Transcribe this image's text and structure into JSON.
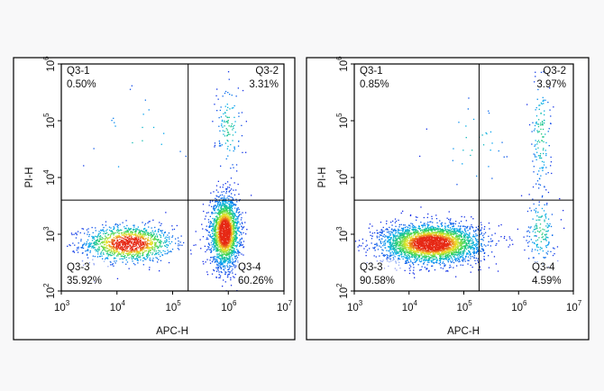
{
  "chart_data": [
    {
      "type": "scatter",
      "subtype": "flow-cytometry-density-dot-plot",
      "xlabel": "APC-H",
      "ylabel": "PI-H",
      "x_scale": "log",
      "y_scale": "log",
      "xlim": [
        1000,
        10000000
      ],
      "ylim": [
        100,
        1000000
      ],
      "x_ticks": [
        {
          "base": "10",
          "exp": "3"
        },
        {
          "base": "10",
          "exp": "4"
        },
        {
          "base": "10",
          "exp": "5"
        },
        {
          "base": "10",
          "exp": "6"
        },
        {
          "base": "10",
          "exp": "7"
        }
      ],
      "y_ticks": [
        {
          "base": "10",
          "exp": "2"
        },
        {
          "base": "10",
          "exp": "3"
        },
        {
          "base": "10",
          "exp": "4"
        },
        {
          "base": "10",
          "exp": "5"
        },
        {
          "base": "10",
          "exp": "6"
        }
      ],
      "gates": {
        "x_threshold": 190000,
        "y_threshold": 4000
      },
      "quadrants": [
        {
          "name": "Q3-1",
          "percent": "0.50%"
        },
        {
          "name": "Q3-2",
          "percent": "3.31%"
        },
        {
          "name": "Q3-3",
          "percent": "35.92%"
        },
        {
          "name": "Q3-4",
          "percent": "60.26%"
        }
      ],
      "populations": [
        {
          "center_x": 16000,
          "center_y": 700,
          "weight": 0.36
        },
        {
          "center_x": 850000,
          "center_y": 1100,
          "weight": 0.6
        },
        {
          "center_x": 1000000,
          "center_y": 80000,
          "weight": 0.033
        },
        {
          "center_x": 25000,
          "center_y": 40000,
          "weight": 0.005
        }
      ]
    },
    {
      "type": "scatter",
      "subtype": "flow-cytometry-density-dot-plot",
      "xlabel": "APC-H",
      "ylabel": "PI-H",
      "x_scale": "log",
      "y_scale": "log",
      "xlim": [
        1000,
        10000000
      ],
      "ylim": [
        100,
        1000000
      ],
      "x_ticks": [
        {
          "base": "10",
          "exp": "3"
        },
        {
          "base": "10",
          "exp": "4"
        },
        {
          "base": "10",
          "exp": "5"
        },
        {
          "base": "10",
          "exp": "6"
        },
        {
          "base": "10",
          "exp": "7"
        }
      ],
      "y_ticks": [
        {
          "base": "10",
          "exp": "2"
        },
        {
          "base": "10",
          "exp": "3"
        },
        {
          "base": "10",
          "exp": "4"
        },
        {
          "base": "10",
          "exp": "5"
        },
        {
          "base": "10",
          "exp": "6"
        }
      ],
      "gates": {
        "x_threshold": 190000,
        "y_threshold": 4000
      },
      "quadrants": [
        {
          "name": "Q3-1",
          "percent": "0.85%"
        },
        {
          "name": "Q3-2",
          "percent": "3.97%"
        },
        {
          "name": "Q3-3",
          "percent": "90.58%"
        },
        {
          "name": "Q3-4",
          "percent": "4.59%"
        }
      ],
      "populations": [
        {
          "center_x": 25000,
          "center_y": 700,
          "weight": 0.9
        },
        {
          "center_x": 2500000,
          "center_y": 1200,
          "weight": 0.045
        },
        {
          "center_x": 2500000,
          "center_y": 60000,
          "weight": 0.04
        },
        {
          "center_x": 150000,
          "center_y": 40000,
          "weight": 0.009
        }
      ]
    }
  ]
}
